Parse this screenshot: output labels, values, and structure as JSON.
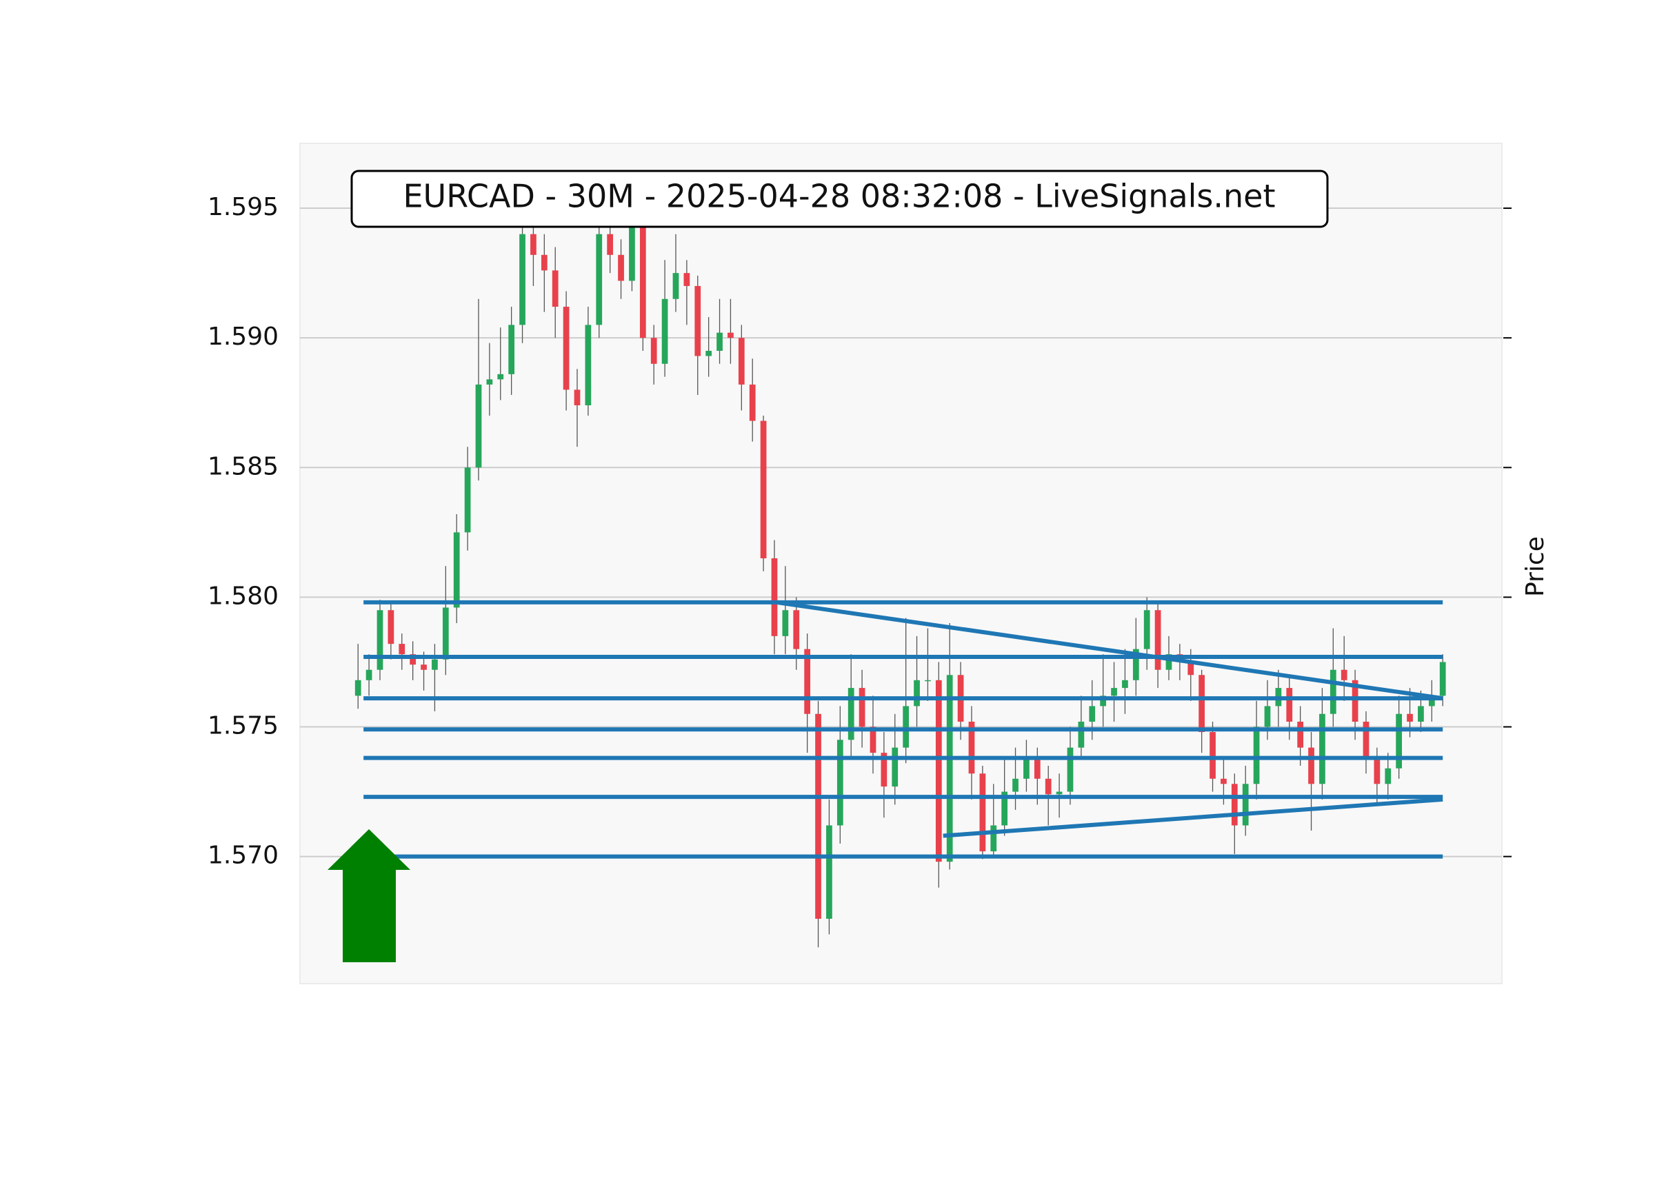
{
  "chart_data": {
    "type": "candlestick",
    "title": "EURCAD - 30M - 2025-04-28 08:32:08 - LiveSignals.net",
    "y_label": "Price",
    "up_color": "#26a65b",
    "down_color": "#e8414c",
    "line_color": "#1f77b4",
    "grid": true,
    "xlim": [
      -5.3,
      104.4
    ],
    "ylim": [
      1.5651,
      1.5975
    ],
    "yticks": [
      {
        "value": 1.57,
        "label": "1.570"
      },
      1.575,
      {
        "value": 1.58,
        "label": "1.580"
      },
      1.585,
      {
        "value": 1.59,
        "label": "1.590"
      },
      1.595
    ],
    "open": [
      1.5762,
      1.5768,
      1.5772,
      1.5795,
      1.5782,
      1.5778,
      1.5774,
      1.5772,
      1.5776,
      1.5796,
      1.5825,
      1.585,
      1.5882,
      1.5884,
      1.5886,
      1.5905,
      1.594,
      1.5932,
      1.5926,
      1.5912,
      1.588,
      1.5874,
      1.5905,
      1.594,
      1.5932,
      1.5922,
      1.5945,
      1.59,
      1.589,
      1.5915,
      1.5925,
      1.592,
      1.5893,
      1.5895,
      1.5902,
      1.59,
      1.5882,
      1.5868,
      1.5815,
      1.5785,
      1.5795,
      1.578,
      1.5755,
      1.5676,
      1.5712,
      1.5745,
      1.5765,
      1.575,
      1.574,
      1.5727,
      1.5742,
      1.5758,
      1.5768,
      1.5768,
      1.5698,
      1.577,
      1.5752,
      1.5732,
      1.5702,
      1.5712,
      1.5725,
      1.573,
      1.5738,
      1.573,
      1.5724,
      1.5725,
      1.5742,
      1.5752,
      1.5758,
      1.5762,
      1.5765,
      1.5768,
      1.578,
      1.5795,
      1.5772,
      1.5778,
      1.5775,
      1.577,
      1.5748,
      1.573,
      1.5728,
      1.5712,
      1.5728,
      1.575,
      1.5758,
      1.5765,
      1.5752,
      1.5742,
      1.5728,
      1.5755,
      1.5772,
      1.5768,
      1.5752,
      1.5738,
      1.5728,
      1.5734,
      1.5755,
      1.5752,
      1.5758,
      1.5762
    ],
    "high": [
      1.5782,
      1.5778,
      1.5799,
      1.5798,
      1.5786,
      1.5783,
      1.5779,
      1.5782,
      1.5812,
      1.5832,
      1.5858,
      1.5915,
      1.5898,
      1.5904,
      1.5912,
      1.5952,
      1.5948,
      1.594,
      1.5935,
      1.5918,
      1.5888,
      1.5912,
      1.595,
      1.5952,
      1.5938,
      1.5952,
      1.5948,
      1.5905,
      1.593,
      1.594,
      1.593,
      1.5924,
      1.5908,
      1.5915,
      1.5915,
      1.5905,
      1.5892,
      1.587,
      1.5822,
      1.5812,
      1.58,
      1.5786,
      1.576,
      1.5722,
      1.5758,
      1.5778,
      1.5772,
      1.5762,
      1.5748,
      1.5755,
      1.5792,
      1.5785,
      1.5788,
      1.5775,
      1.579,
      1.5775,
      1.5758,
      1.5735,
      1.5728,
      1.5738,
      1.5742,
      1.5745,
      1.5742,
      1.5735,
      1.5732,
      1.575,
      1.5762,
      1.5768,
      1.5778,
      1.5775,
      1.578,
      1.5792,
      1.58,
      1.5798,
      1.5785,
      1.5782,
      1.578,
      1.5772,
      1.5752,
      1.5738,
      1.5732,
      1.5735,
      1.576,
      1.5768,
      1.5772,
      1.577,
      1.5758,
      1.5748,
      1.5765,
      1.5788,
      1.5785,
      1.5772,
      1.5756,
      1.5742,
      1.574,
      1.5762,
      1.5765,
      1.5764,
      1.5768,
      1.5778
    ],
    "low": [
      1.5757,
      1.5762,
      1.5768,
      1.5776,
      1.5772,
      1.5768,
      1.5764,
      1.5756,
      1.577,
      1.579,
      1.5818,
      1.5845,
      1.587,
      1.5876,
      1.5878,
      1.5898,
      1.592,
      1.591,
      1.59,
      1.5872,
      1.5858,
      1.587,
      1.59,
      1.5925,
      1.5915,
      1.5918,
      1.5895,
      1.5882,
      1.5885,
      1.591,
      1.5905,
      1.5878,
      1.5885,
      1.589,
      1.589,
      1.5872,
      1.586,
      1.581,
      1.5778,
      1.5778,
      1.5772,
      1.574,
      1.5665,
      1.567,
      1.5705,
      1.5738,
      1.5742,
      1.5732,
      1.5715,
      1.572,
      1.5736,
      1.575,
      1.576,
      1.5688,
      1.5695,
      1.5745,
      1.5722,
      1.5699,
      1.57,
      1.5708,
      1.5718,
      1.5725,
      1.572,
      1.5712,
      1.5715,
      1.572,
      1.5738,
      1.5745,
      1.575,
      1.5752,
      1.5755,
      1.5762,
      1.5772,
      1.5765,
      1.5768,
      1.5768,
      1.576,
      1.574,
      1.5725,
      1.572,
      1.5701,
      1.5708,
      1.5722,
      1.5745,
      1.575,
      1.5745,
      1.5735,
      1.571,
      1.5722,
      1.575,
      1.576,
      1.5745,
      1.5732,
      1.572,
      1.5722,
      1.573,
      1.5746,
      1.5748,
      1.5752,
      1.5758
    ],
    "close": [
      1.5768,
      1.5772,
      1.5795,
      1.5782,
      1.5778,
      1.5774,
      1.5772,
      1.5776,
      1.5796,
      1.5825,
      1.585,
      1.5882,
      1.5884,
      1.5886,
      1.5905,
      1.594,
      1.5932,
      1.5926,
      1.5912,
      1.588,
      1.5874,
      1.5905,
      1.594,
      1.5932,
      1.5922,
      1.5945,
      1.59,
      1.589,
      1.5915,
      1.5925,
      1.592,
      1.5893,
      1.5895,
      1.5902,
      1.59,
      1.5882,
      1.5868,
      1.5815,
      1.5785,
      1.5795,
      1.578,
      1.5755,
      1.5676,
      1.5712,
      1.5745,
      1.5765,
      1.575,
      1.574,
      1.5727,
      1.5742,
      1.5758,
      1.5768,
      1.5768,
      1.5698,
      1.577,
      1.5752,
      1.5732,
      1.5702,
      1.5712,
      1.5725,
      1.573,
      1.5738,
      1.573,
      1.5724,
      1.5725,
      1.5742,
      1.5752,
      1.5758,
      1.5762,
      1.5765,
      1.5768,
      1.578,
      1.5795,
      1.5772,
      1.5778,
      1.5775,
      1.577,
      1.5748,
      1.573,
      1.5728,
      1.5712,
      1.5728,
      1.575,
      1.5758,
      1.5765,
      1.5752,
      1.5742,
      1.5728,
      1.5755,
      1.5772,
      1.5768,
      1.5752,
      1.5738,
      1.5728,
      1.5734,
      1.5755,
      1.5752,
      1.5758,
      1.5762,
      1.5775
    ],
    "lines": [
      {
        "x": [
          0.5,
          99
        ],
        "y": [
          1.5798,
          1.5798
        ]
      },
      {
        "x": [
          0.5,
          99
        ],
        "y": [
          1.5777,
          1.5777
        ]
      },
      {
        "x": [
          0.5,
          99
        ],
        "y": [
          1.5761,
          1.5761
        ]
      },
      {
        "x": [
          0.5,
          99
        ],
        "y": [
          1.5749,
          1.5749
        ]
      },
      {
        "x": [
          0.5,
          99
        ],
        "y": [
          1.5738,
          1.5738
        ]
      },
      {
        "x": [
          0.5,
          99
        ],
        "y": [
          1.5723,
          1.5723
        ]
      },
      {
        "x": [
          0.5,
          99
        ],
        "y": [
          1.57,
          1.57
        ]
      },
      {
        "x": [
          38.2,
          99
        ],
        "y": [
          1.5798,
          1.5761
        ]
      },
      {
        "x": [
          53.4,
          99
        ],
        "y": [
          1.5708,
          1.5722
        ]
      }
    ]
  }
}
